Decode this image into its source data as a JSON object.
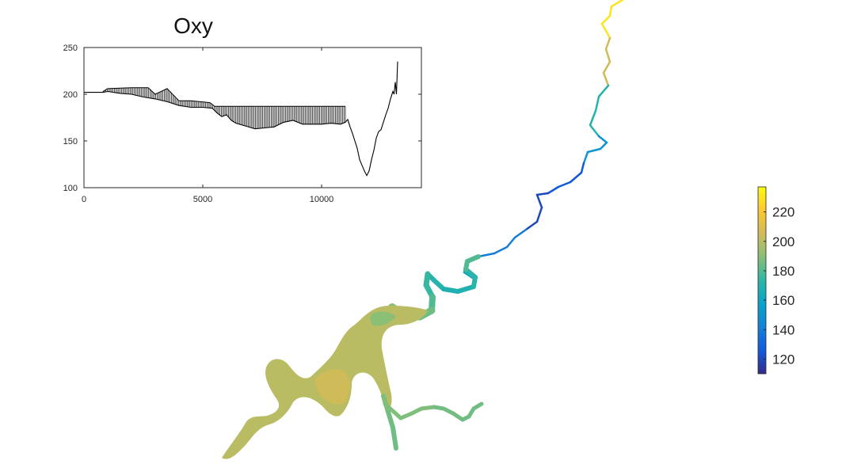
{
  "chart_data": [
    {
      "type": "line",
      "title": "Oxy",
      "xlabel": "",
      "ylabel": "",
      "xlim": [
        0,
        14200
      ],
      "ylim": [
        100,
        250
      ],
      "xticks": [
        0,
        5000,
        10000
      ],
      "xtick_labels": [
        "0",
        "5000",
        "10000"
      ],
      "yticks": [
        100,
        150,
        200,
        250
      ],
      "ytick_labels": [
        "100",
        "150",
        "200",
        "250"
      ],
      "grid": false,
      "series": [
        {
          "color": "#000000",
          "points": [
            [
              0,
              202
            ],
            [
              800,
              202
            ],
            [
              1000,
              203
            ],
            [
              1500,
              201
            ],
            [
              2000,
              200
            ],
            [
              2500,
              197
            ],
            [
              3000,
              195
            ],
            [
              3500,
              192
            ],
            [
              4000,
              188
            ],
            [
              4500,
              186
            ],
            [
              5000,
              186
            ],
            [
              5400,
              185
            ],
            [
              5600,
              180
            ],
            [
              5800,
              176
            ],
            [
              6000,
              178
            ],
            [
              6200,
              172
            ],
            [
              6400,
              169
            ],
            [
              6800,
              166
            ],
            [
              7200,
              163
            ],
            [
              7600,
              164
            ],
            [
              8000,
              165
            ],
            [
              8400,
              170
            ],
            [
              8800,
              172
            ],
            [
              9200,
              168
            ],
            [
              9600,
              168
            ],
            [
              10000,
              168
            ],
            [
              10400,
              169
            ],
            [
              10800,
              168
            ],
            [
              11000,
              170
            ],
            [
              11100,
              173
            ],
            [
              11200,
              165
            ],
            [
              11300,
              158
            ],
            [
              11400,
              150
            ],
            [
              11500,
              142
            ],
            [
              11600,
              130
            ],
            [
              11700,
              124
            ],
            [
              11800,
              118
            ],
            [
              11900,
              113
            ],
            [
              12000,
              118
            ],
            [
              12100,
              130
            ],
            [
              12200,
              140
            ],
            [
              12300,
              153
            ],
            [
              12400,
              160
            ],
            [
              12500,
              162
            ],
            [
              12600,
              170
            ],
            [
              12700,
              178
            ],
            [
              12800,
              185
            ],
            [
              12900,
              195
            ],
            [
              13000,
              203
            ],
            [
              13050,
              200
            ],
            [
              13100,
              213
            ],
            [
              13150,
              200
            ],
            [
              13200,
              235
            ]
          ],
          "envelope_upper": [
            [
              800,
              203
            ],
            [
              1000,
              206
            ],
            [
              2000,
              207
            ],
            [
              2700,
              207
            ],
            [
              3000,
              200
            ],
            [
              3500,
              206
            ],
            [
              4000,
              193
            ],
            [
              4500,
              193
            ],
            [
              5300,
              191
            ],
            [
              5500,
              187
            ],
            [
              8000,
              187
            ],
            [
              11000,
              187
            ]
          ]
        }
      ]
    },
    {
      "type": "heatmap",
      "colorbar": {
        "range": [
          110,
          237
        ],
        "ticks": [
          120,
          140,
          160,
          180,
          200,
          220
        ],
        "tick_labels": [
          "120",
          "140",
          "160",
          "180",
          "200",
          "220"
        ],
        "colormap": "parula",
        "colors": [
          "#352a87",
          "#0f5cdd",
          "#1481d6",
          "#06a4ca",
          "#2eb7a4",
          "#87bf77",
          "#d1bb59",
          "#fec832",
          "#f9fb0e"
        ]
      },
      "map_values": {
        "upper_river": [
          230,
          205,
          170,
          150,
          125,
          120,
          140,
          160,
          165
        ],
        "lower_river": [
          170,
          168,
          172,
          180
        ],
        "estuary": [
          190,
          195,
          200,
          205,
          203,
          198
        ],
        "side_arm": [
          188,
          186,
          185
        ]
      }
    }
  ]
}
